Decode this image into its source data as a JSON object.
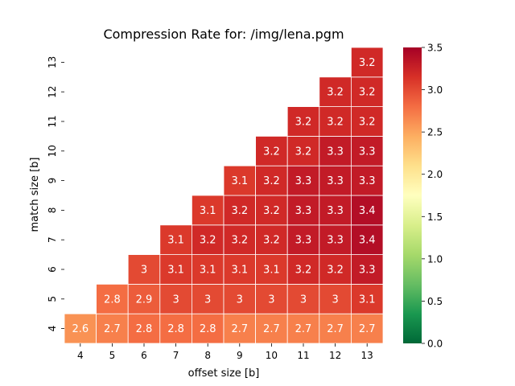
{
  "chart_data": {
    "type": "heatmap",
    "title": "Compression Rate for: /img/lena.pgm",
    "xlabel": "offset size [b]",
    "ylabel": "match size [b]",
    "x_categories": [
      "4",
      "5",
      "6",
      "7",
      "8",
      "9",
      "10",
      "11",
      "12",
      "13"
    ],
    "y_categories": [
      "4",
      "5",
      "6",
      "7",
      "8",
      "9",
      "10",
      "11",
      "12",
      "13"
    ],
    "values": [
      [
        2.6,
        2.7,
        2.8,
        2.8,
        2.8,
        2.7,
        2.7,
        2.7,
        2.7,
        2.7
      ],
      [
        null,
        2.8,
        2.9,
        3.0,
        3.0,
        3.0,
        3.0,
        3.0,
        3.0,
        3.1
      ],
      [
        null,
        null,
        3.0,
        3.1,
        3.1,
        3.1,
        3.1,
        3.2,
        3.2,
        3.3
      ],
      [
        null,
        null,
        null,
        3.1,
        3.2,
        3.2,
        3.2,
        3.3,
        3.3,
        3.4
      ],
      [
        null,
        null,
        null,
        null,
        3.1,
        3.2,
        3.2,
        3.3,
        3.3,
        3.4
      ],
      [
        null,
        null,
        null,
        null,
        null,
        3.1,
        3.2,
        3.3,
        3.3,
        3.3
      ],
      [
        null,
        null,
        null,
        null,
        null,
        null,
        3.2,
        3.2,
        3.3,
        3.3
      ],
      [
        null,
        null,
        null,
        null,
        null,
        null,
        null,
        3.2,
        3.2,
        3.2
      ],
      [
        null,
        null,
        null,
        null,
        null,
        null,
        null,
        null,
        3.2,
        3.2
      ],
      [
        null,
        null,
        null,
        null,
        null,
        null,
        null,
        null,
        null,
        3.2
      ]
    ],
    "labels": [
      [
        "2.6",
        "2.7",
        "2.8",
        "2.8",
        "2.8",
        "2.7",
        "2.7",
        "2.7",
        "2.7",
        "2.7"
      ],
      [
        null,
        "2.8",
        "2.9",
        "3",
        "3",
        "3",
        "3",
        "3",
        "3",
        "3.1"
      ],
      [
        null,
        null,
        "3",
        "3.1",
        "3.1",
        "3.1",
        "3.1",
        "3.2",
        "3.2",
        "3.3"
      ],
      [
        null,
        null,
        null,
        "3.1",
        "3.2",
        "3.2",
        "3.2",
        "3.3",
        "3.3",
        "3.4"
      ],
      [
        null,
        null,
        null,
        null,
        "3.1",
        "3.2",
        "3.2",
        "3.3",
        "3.3",
        "3.4"
      ],
      [
        null,
        null,
        null,
        null,
        null,
        "3.1",
        "3.2",
        "3.3",
        "3.3",
        "3.3"
      ],
      [
        null,
        null,
        null,
        null,
        null,
        null,
        "3.2",
        "3.2",
        "3.3",
        "3.3"
      ],
      [
        null,
        null,
        null,
        null,
        null,
        null,
        null,
        "3.2",
        "3.2",
        "3.2"
      ],
      [
        null,
        null,
        null,
        null,
        null,
        null,
        null,
        null,
        "3.2",
        "3.2"
      ],
      [
        null,
        null,
        null,
        null,
        null,
        null,
        null,
        null,
        null,
        "3.2"
      ]
    ],
    "colorbar": {
      "vmin": 0.0,
      "vmax": 3.5,
      "ticks": [
        "0.0",
        "0.5",
        "1.0",
        "1.5",
        "2.0",
        "2.5",
        "3.0",
        "3.5"
      ],
      "colormap": "RdYlGn_r"
    },
    "grid": false,
    "legend": "colorbar-right"
  }
}
